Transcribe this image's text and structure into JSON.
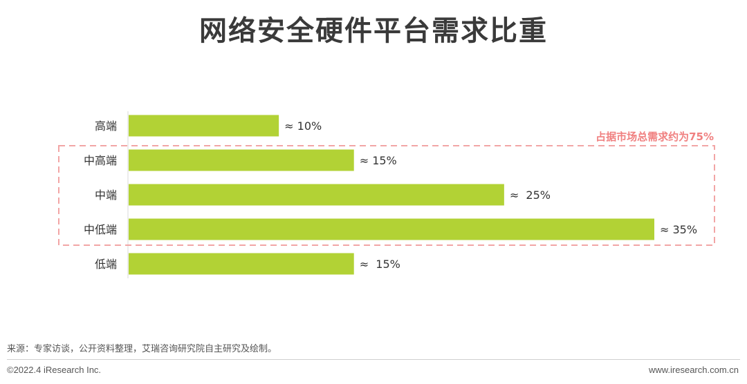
{
  "title": "网络安全硬件平台需求比重",
  "chart_data": {
    "type": "bar",
    "orientation": "horizontal",
    "categories": [
      "高端",
      "中高端",
      "中端",
      "中低端",
      "低端"
    ],
    "values": [
      10,
      15,
      25,
      35,
      15
    ],
    "value_labels": [
      "≈ 10%",
      "≈ 15%",
      "≈  25%",
      "≈ 35%",
      "≈  15%"
    ],
    "bar_color": "#b2d235",
    "highlight": {
      "label": "占据市场总需求约为75%",
      "categories": [
        "中高端",
        "中端",
        "中低端"
      ],
      "color": "#f2a5a5",
      "label_color": "#f08080"
    },
    "xlim": [
      0,
      35
    ]
  },
  "footer": {
    "source": "来源：专家访谈，公开资料整理，艾瑞咨询研究院自主研究及绘制。",
    "copyright": "©2022.4 iResearch Inc.",
    "url": "www.iresearch.com.cn"
  }
}
